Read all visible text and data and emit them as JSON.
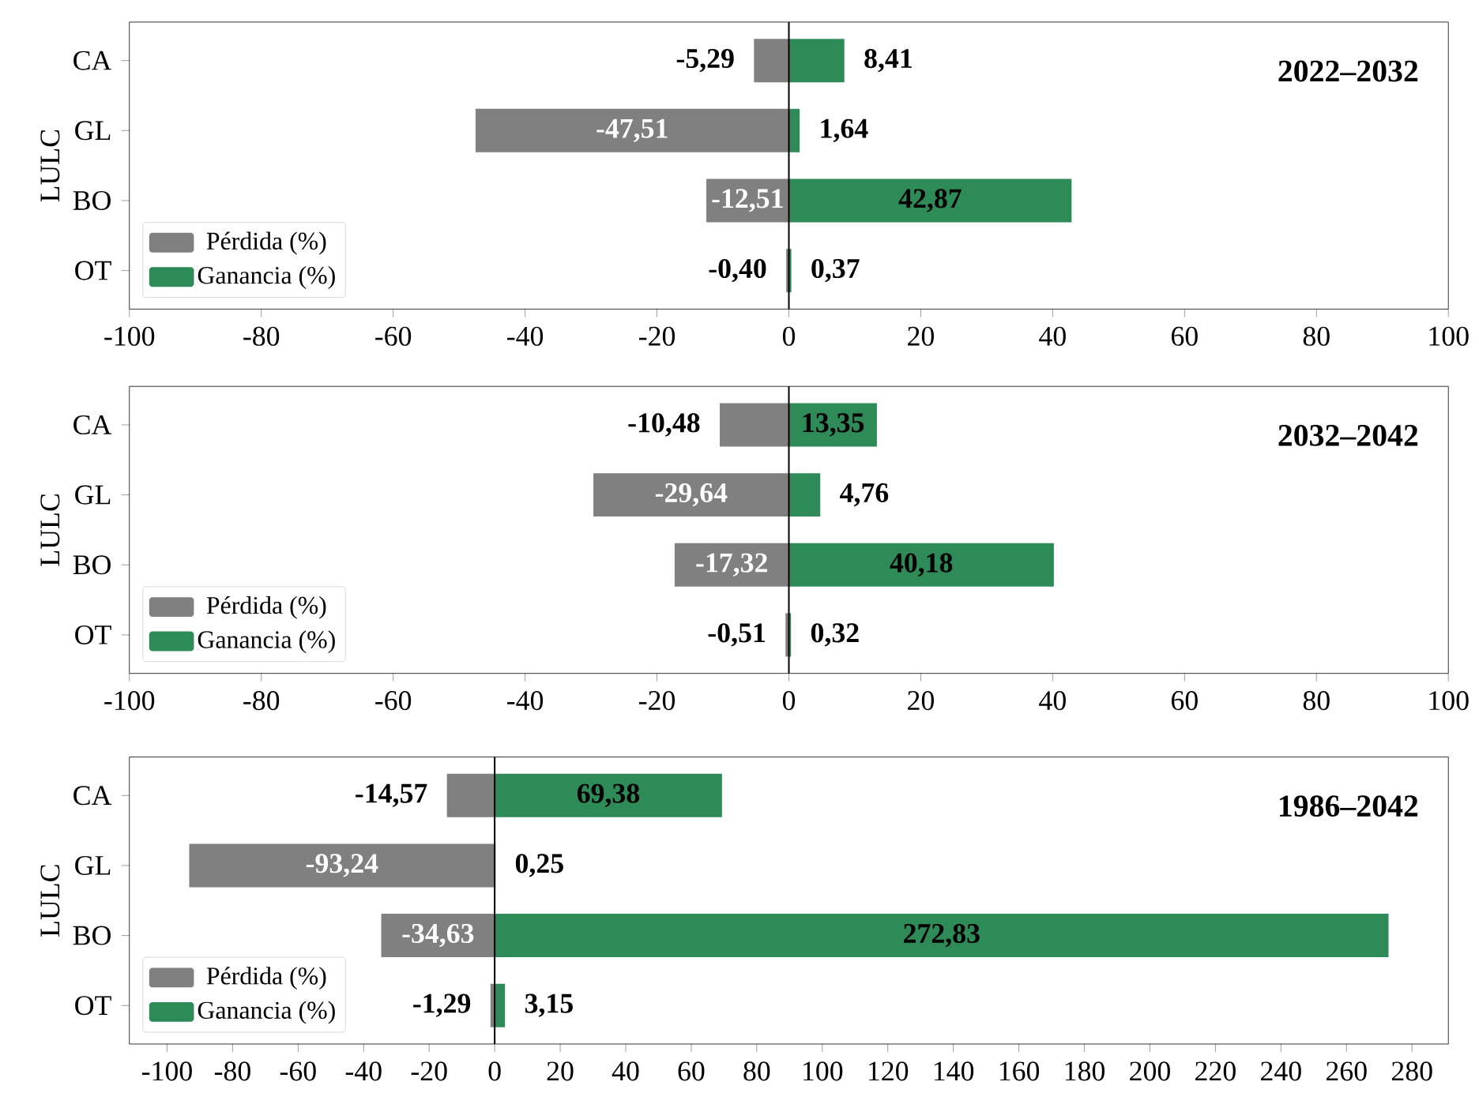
{
  "chart_data": [
    {
      "type": "bar",
      "orientation": "horizontal",
      "stacked": true,
      "categories": [
        "CA",
        "GL",
        "BO",
        "OT"
      ],
      "ylabel": "LULC",
      "annotations": [
        "2022–2032"
      ],
      "xlim": [
        -100,
        100
      ],
      "xticks": [
        -100,
        -80,
        -60,
        -40,
        -20,
        0,
        20,
        40,
        60,
        80,
        100
      ],
      "legend": "bottom left",
      "ref_lines": [
        {
          "axis": "x",
          "value": 0,
          "color": "#000000"
        }
      ],
      "series": [
        {
          "name": "Pérdida (%)",
          "color": "#808080",
          "values": [
            -5.29,
            -47.51,
            -12.51,
            -0.4
          ],
          "value_labels": [
            "-5,29",
            "-47,51",
            "-12,51",
            "-0,40"
          ]
        },
        {
          "name": "Ganancia (%)",
          "color": "#2e8b57",
          "values": [
            8.41,
            1.64,
            42.87,
            0.37
          ],
          "value_labels": [
            "8,41",
            "1,64",
            "42,87",
            "0,37"
          ]
        }
      ]
    },
    {
      "type": "bar",
      "orientation": "horizontal",
      "stacked": true,
      "categories": [
        "CA",
        "GL",
        "BO",
        "OT"
      ],
      "ylabel": "LULC",
      "annotations": [
        "2032–2042"
      ],
      "xlim": [
        -100,
        100
      ],
      "xticks": [
        -100,
        -80,
        -60,
        -40,
        -20,
        0,
        20,
        40,
        60,
        80,
        100
      ],
      "legend": "bottom left",
      "ref_lines": [
        {
          "axis": "x",
          "value": 0,
          "color": "#000000"
        }
      ],
      "series": [
        {
          "name": "Pérdida (%)",
          "color": "#808080",
          "values": [
            -10.48,
            -29.64,
            -17.32,
            -0.51
          ],
          "value_labels": [
            "-10,48",
            "-29,64",
            "-17,32",
            "-0,51"
          ]
        },
        {
          "name": "Ganancia (%)",
          "color": "#2e8b57",
          "values": [
            13.35,
            4.76,
            40.18,
            0.32
          ],
          "value_labels": [
            "13,35",
            "4,76",
            "40,18",
            "0,32"
          ]
        }
      ]
    },
    {
      "type": "bar",
      "orientation": "horizontal",
      "stacked": true,
      "categories": [
        "CA",
        "GL",
        "BO",
        "OT"
      ],
      "ylabel": "LULC",
      "annotations": [
        "1986–2042"
      ],
      "xlim": [
        -111.5,
        291.1
      ],
      "xticks": [
        -100,
        -80,
        -60,
        -40,
        -20,
        0,
        20,
        40,
        60,
        80,
        100,
        120,
        140,
        160,
        180,
        200,
        220,
        240,
        260,
        280
      ],
      "legend": "bottom left",
      "ref_lines": [
        {
          "axis": "x",
          "value": 0,
          "color": "#000000"
        }
      ],
      "series": [
        {
          "name": "Pérdida (%)",
          "color": "#808080",
          "values": [
            -14.57,
            -93.24,
            -34.63,
            -1.29
          ],
          "value_labels": [
            "-14,57",
            "-93,24",
            "-34,63",
            "-1,29"
          ]
        },
        {
          "name": "Ganancia (%)",
          "color": "#2e8b57",
          "values": [
            69.38,
            0.25,
            272.83,
            3.15
          ],
          "value_labels": [
            "69,38",
            "0,25",
            "272,83",
            "3,15"
          ]
        }
      ]
    }
  ]
}
